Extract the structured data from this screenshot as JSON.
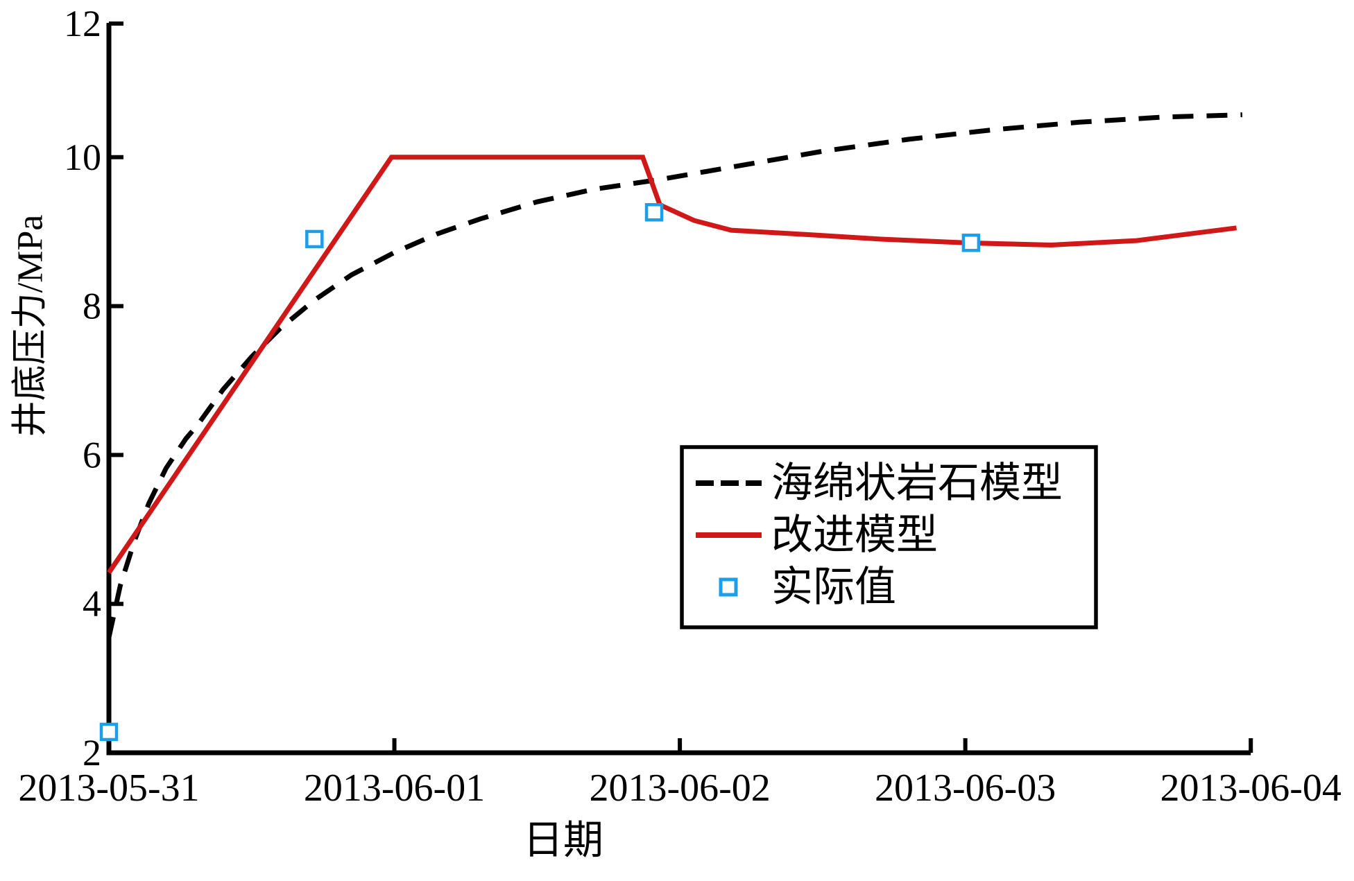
{
  "chart_data": {
    "type": "line",
    "title": "",
    "xlabel": "日期",
    "ylabel": "井底压力/MPa",
    "x_tick_labels": [
      "2013-05-31",
      "2013-06-01",
      "2013-06-02",
      "2013-06-03",
      "2013-06-04"
    ],
    "x_tick_days": [
      0,
      1,
      2,
      3,
      4
    ],
    "y_ticks": [
      2,
      4,
      6,
      8,
      10,
      12
    ],
    "y_tick_labels": [
      "2",
      "4",
      "6",
      "8",
      "10",
      "12"
    ],
    "xlim": [
      0,
      4
    ],
    "ylim": [
      2,
      12
    ],
    "grid": false,
    "legend": {
      "position": "inside-center-right",
      "entries": [
        {
          "label": "海绵状岩石模型",
          "swatch": "dashed-line",
          "color": "#000000"
        },
        {
          "label": "改进模型",
          "swatch": "solid-line",
          "color": "#d01818"
        },
        {
          "label": "实际值",
          "swatch": "open-square",
          "color": "#1c9fe8"
        }
      ]
    },
    "series": [
      {
        "name": "海绵状岩石模型",
        "type": "line",
        "line_style": "dashed",
        "color": "#000000",
        "points": [
          [
            0.0,
            3.55
          ],
          [
            0.04,
            4.25
          ],
          [
            0.09,
            4.85
          ],
          [
            0.14,
            5.35
          ],
          [
            0.2,
            5.82
          ],
          [
            0.27,
            6.22
          ],
          [
            0.31,
            6.4
          ],
          [
            0.4,
            6.88
          ],
          [
            0.5,
            7.32
          ],
          [
            0.6,
            7.7
          ],
          [
            0.72,
            8.08
          ],
          [
            0.85,
            8.42
          ],
          [
            1.0,
            8.72
          ],
          [
            1.15,
            8.97
          ],
          [
            1.3,
            9.17
          ],
          [
            1.5,
            9.4
          ],
          [
            1.7,
            9.57
          ],
          [
            1.93,
            9.7
          ],
          [
            2.2,
            9.88
          ],
          [
            2.5,
            10.08
          ],
          [
            2.8,
            10.24
          ],
          [
            3.1,
            10.37
          ],
          [
            3.4,
            10.47
          ],
          [
            3.7,
            10.54
          ],
          [
            3.97,
            10.57
          ]
        ]
      },
      {
        "name": "改进模型",
        "type": "line",
        "line_style": "solid",
        "color": "#d01818",
        "points": [
          [
            0.0,
            4.42
          ],
          [
            0.99,
            10.0
          ],
          [
            1.87,
            10.0
          ],
          [
            1.93,
            9.36
          ],
          [
            2.05,
            9.15
          ],
          [
            2.18,
            9.02
          ],
          [
            2.45,
            8.96
          ],
          [
            2.7,
            8.9
          ],
          [
            3.0,
            8.85
          ],
          [
            3.3,
            8.82
          ],
          [
            3.6,
            8.88
          ],
          [
            3.95,
            9.05
          ]
        ]
      },
      {
        "name": "实际值",
        "type": "scatter",
        "marker": "open-square",
        "color": "#1c9fe8",
        "points": [
          [
            0.0,
            2.28
          ],
          [
            0.72,
            8.9
          ],
          [
            1.91,
            9.26
          ],
          [
            3.02,
            8.85
          ]
        ]
      }
    ]
  }
}
